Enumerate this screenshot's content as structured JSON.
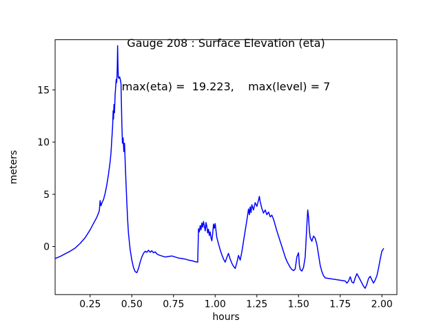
{
  "chart_data": {
    "type": "line",
    "title_line1": "Gauge 208 : Surface Elevation (eta)",
    "title_line2": "max(eta) =  19.223,    max(level) = 7",
    "xlabel": "hours",
    "ylabel": "meters",
    "xlim": [
      0.04,
      2.09
    ],
    "ylim": [
      -4.6,
      19.8
    ],
    "grid": false,
    "legend": null,
    "line_color": "#0000ff",
    "max_eta": 19.223,
    "max_level": 7,
    "x_ticks": [
      0.25,
      0.5,
      0.75,
      1.0,
      1.25,
      1.5,
      1.75,
      2.0
    ],
    "x_tick_labels": [
      "0.25",
      "0.50",
      "0.75",
      "1.00",
      "1.25",
      "1.50",
      "1.75",
      "2.00"
    ],
    "y_ticks": [
      0,
      5,
      10,
      15
    ],
    "y_tick_labels": [
      "0",
      "5",
      "10",
      "15"
    ],
    "series": [
      {
        "name": "eta",
        "points": [
          [
            0.04,
            -1.15
          ],
          [
            0.07,
            -0.95
          ],
          [
            0.1,
            -0.7
          ],
          [
            0.13,
            -0.45
          ],
          [
            0.16,
            -0.15
          ],
          [
            0.19,
            0.3
          ],
          [
            0.22,
            0.85
          ],
          [
            0.25,
            1.6
          ],
          [
            0.27,
            2.2
          ],
          [
            0.29,
            2.8
          ],
          [
            0.3,
            3.2
          ],
          [
            0.305,
            3.4
          ],
          [
            0.31,
            4.4
          ],
          [
            0.315,
            3.9
          ],
          [
            0.32,
            4.15
          ],
          [
            0.33,
            4.5
          ],
          [
            0.34,
            5.1
          ],
          [
            0.35,
            5.9
          ],
          [
            0.36,
            6.9
          ],
          [
            0.37,
            8.1
          ],
          [
            0.375,
            9.0
          ],
          [
            0.38,
            10.3
          ],
          [
            0.385,
            11.6
          ],
          [
            0.388,
            13.0
          ],
          [
            0.39,
            12.2
          ],
          [
            0.393,
            13.6
          ],
          [
            0.396,
            12.8
          ],
          [
            0.4,
            14.6
          ],
          [
            0.403,
            15.2
          ],
          [
            0.406,
            16.0
          ],
          [
            0.409,
            15.7
          ],
          [
            0.411,
            16.3
          ],
          [
            0.413,
            17.2
          ],
          [
            0.415,
            19.223
          ],
          [
            0.417,
            17.4
          ],
          [
            0.419,
            16.2
          ],
          [
            0.423,
            16.1
          ],
          [
            0.427,
            16.25
          ],
          [
            0.431,
            16.0
          ],
          [
            0.435,
            15.6
          ],
          [
            0.44,
            11.8
          ],
          [
            0.444,
            9.9
          ],
          [
            0.448,
            10.4
          ],
          [
            0.452,
            9.1
          ],
          [
            0.456,
            9.9
          ],
          [
            0.46,
            8.2
          ],
          [
            0.465,
            6.2
          ],
          [
            0.47,
            4.3
          ],
          [
            0.475,
            2.6
          ],
          [
            0.48,
            1.2
          ],
          [
            0.49,
            -0.3
          ],
          [
            0.5,
            -1.3
          ],
          [
            0.51,
            -2.0
          ],
          [
            0.52,
            -2.4
          ],
          [
            0.53,
            -2.5
          ],
          [
            0.54,
            -2.1
          ],
          [
            0.55,
            -1.5
          ],
          [
            0.56,
            -1.0
          ],
          [
            0.57,
            -0.65
          ],
          [
            0.58,
            -0.45
          ],
          [
            0.59,
            -0.55
          ],
          [
            0.6,
            -0.35
          ],
          [
            0.61,
            -0.55
          ],
          [
            0.62,
            -0.4
          ],
          [
            0.63,
            -0.6
          ],
          [
            0.64,
            -0.5
          ],
          [
            0.65,
            -0.7
          ],
          [
            0.66,
            -0.8
          ],
          [
            0.68,
            -0.9
          ],
          [
            0.7,
            -1.0
          ],
          [
            0.72,
            -0.95
          ],
          [
            0.74,
            -0.9
          ],
          [
            0.76,
            -1.0
          ],
          [
            0.78,
            -1.1
          ],
          [
            0.8,
            -1.15
          ],
          [
            0.82,
            -1.2
          ],
          [
            0.84,
            -1.3
          ],
          [
            0.86,
            -1.35
          ],
          [
            0.88,
            -1.45
          ],
          [
            0.895,
            -1.5
          ],
          [
            0.9,
            1.7
          ],
          [
            0.905,
            1.4
          ],
          [
            0.91,
            2.0
          ],
          [
            0.915,
            1.6
          ],
          [
            0.92,
            2.25
          ],
          [
            0.925,
            1.85
          ],
          [
            0.93,
            2.4
          ],
          [
            0.935,
            2.0
          ],
          [
            0.94,
            1.5
          ],
          [
            0.945,
            2.3
          ],
          [
            0.95,
            1.9
          ],
          [
            0.955,
            1.3
          ],
          [
            0.96,
            1.65
          ],
          [
            0.965,
            1.05
          ],
          [
            0.97,
            1.4
          ],
          [
            0.975,
            0.85
          ],
          [
            0.98,
            0.55
          ],
          [
            0.985,
            1.2
          ],
          [
            0.99,
            2.15
          ],
          [
            0.995,
            1.75
          ],
          [
            1.0,
            2.2
          ],
          [
            1.005,
            1.5
          ],
          [
            1.01,
            0.85
          ],
          [
            1.02,
            0.25
          ],
          [
            1.03,
            -0.3
          ],
          [
            1.04,
            -0.8
          ],
          [
            1.05,
            -1.2
          ],
          [
            1.06,
            -1.5
          ],
          [
            1.07,
            -1.05
          ],
          [
            1.08,
            -0.65
          ],
          [
            1.09,
            -1.2
          ],
          [
            1.1,
            -1.6
          ],
          [
            1.11,
            -1.9
          ],
          [
            1.12,
            -2.1
          ],
          [
            1.13,
            -1.55
          ],
          [
            1.14,
            -0.85
          ],
          [
            1.15,
            -1.3
          ],
          [
            1.16,
            -0.5
          ],
          [
            1.17,
            0.5
          ],
          [
            1.18,
            1.5
          ],
          [
            1.19,
            2.5
          ],
          [
            1.2,
            3.6
          ],
          [
            1.205,
            3.05
          ],
          [
            1.21,
            3.8
          ],
          [
            1.215,
            3.25
          ],
          [
            1.22,
            4.0
          ],
          [
            1.23,
            3.5
          ],
          [
            1.24,
            4.2
          ],
          [
            1.25,
            3.85
          ],
          [
            1.26,
            4.45
          ],
          [
            1.265,
            4.8
          ],
          [
            1.27,
            4.3
          ],
          [
            1.28,
            3.65
          ],
          [
            1.29,
            3.2
          ],
          [
            1.3,
            3.5
          ],
          [
            1.31,
            3.05
          ],
          [
            1.32,
            3.3
          ],
          [
            1.33,
            2.85
          ],
          [
            1.34,
            3.0
          ],
          [
            1.35,
            2.6
          ],
          [
            1.36,
            2.05
          ],
          [
            1.37,
            1.5
          ],
          [
            1.38,
            1.0
          ],
          [
            1.39,
            0.5
          ],
          [
            1.4,
            0.0
          ],
          [
            1.41,
            -0.5
          ],
          [
            1.42,
            -1.0
          ],
          [
            1.43,
            -1.4
          ],
          [
            1.44,
            -1.7
          ],
          [
            1.45,
            -2.0
          ],
          [
            1.46,
            -2.2
          ],
          [
            1.47,
            -2.3
          ],
          [
            1.48,
            -2.15
          ],
          [
            1.49,
            -1.0
          ],
          [
            1.5,
            -0.6
          ],
          [
            1.505,
            -1.8
          ],
          [
            1.51,
            -2.2
          ],
          [
            1.52,
            -2.35
          ],
          [
            1.53,
            -2.0
          ],
          [
            1.54,
            -1.0
          ],
          [
            1.55,
            2.0
          ],
          [
            1.555,
            3.5
          ],
          [
            1.56,
            2.8
          ],
          [
            1.565,
            1.5
          ],
          [
            1.57,
            0.85
          ],
          [
            1.58,
            0.5
          ],
          [
            1.59,
            1.0
          ],
          [
            1.6,
            0.8
          ],
          [
            1.61,
            0.2
          ],
          [
            1.62,
            -0.8
          ],
          [
            1.63,
            -1.8
          ],
          [
            1.64,
            -2.4
          ],
          [
            1.65,
            -2.8
          ],
          [
            1.66,
            -3.0
          ],
          [
            1.68,
            -3.05
          ],
          [
            1.7,
            -3.1
          ],
          [
            1.72,
            -3.15
          ],
          [
            1.74,
            -3.2
          ],
          [
            1.76,
            -3.25
          ],
          [
            1.78,
            -3.3
          ],
          [
            1.79,
            -3.5
          ],
          [
            1.8,
            -3.3
          ],
          [
            1.81,
            -2.9
          ],
          [
            1.82,
            -3.4
          ],
          [
            1.83,
            -3.5
          ],
          [
            1.84,
            -3.0
          ],
          [
            1.85,
            -2.6
          ],
          [
            1.86,
            -2.9
          ],
          [
            1.87,
            -3.2
          ],
          [
            1.88,
            -3.5
          ],
          [
            1.89,
            -3.8
          ],
          [
            1.9,
            -4.0
          ],
          [
            1.91,
            -3.6
          ],
          [
            1.92,
            -3.05
          ],
          [
            1.93,
            -2.85
          ],
          [
            1.94,
            -3.2
          ],
          [
            1.95,
            -3.5
          ],
          [
            1.96,
            -3.2
          ],
          [
            1.97,
            -2.8
          ],
          [
            1.98,
            -2.05
          ],
          [
            1.99,
            -1.2
          ],
          [
            2.0,
            -0.45
          ],
          [
            2.01,
            -0.2
          ]
        ]
      }
    ]
  }
}
